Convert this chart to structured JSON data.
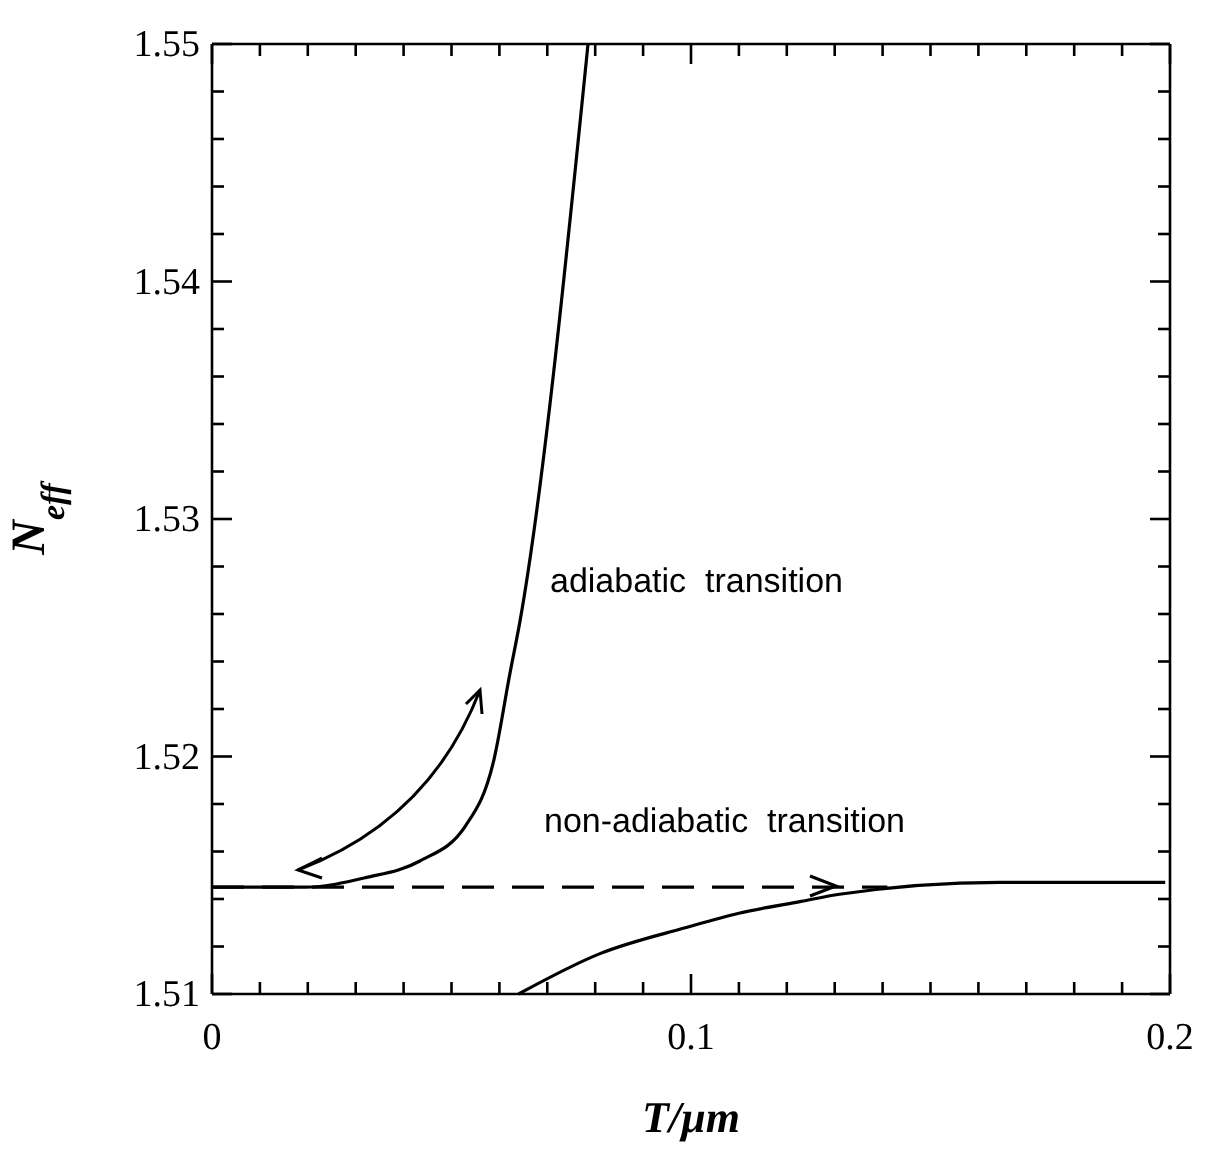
{
  "chart_data": {
    "type": "line",
    "xlabel": "T/μm",
    "ylabel": "N$_{eff}$",
    "xlim": [
      0,
      0.2
    ],
    "ylim": [
      1.51,
      1.55
    ],
    "xticks": [
      0,
      {
        "value": 0.01,
        "label": null
      },
      {
        "value": 0.02,
        "label": null
      },
      {
        "value": 0.03,
        "label": null
      },
      {
        "value": 0.04,
        "label": null
      },
      {
        "value": 0.05,
        "label": null
      },
      {
        "value": 0.06,
        "label": null
      },
      {
        "value": 0.07,
        "label": null
      },
      {
        "value": 0.08,
        "label": null
      },
      {
        "value": 0.09,
        "label": null
      },
      0.1,
      {
        "value": 0.11,
        "label": null
      },
      {
        "value": 0.12,
        "label": null
      },
      {
        "value": 0.13,
        "label": null
      },
      {
        "value": 0.14,
        "label": null
      },
      {
        "value": 0.15,
        "label": null
      },
      {
        "value": 0.16,
        "label": null
      },
      {
        "value": 0.17,
        "label": null
      },
      {
        "value": 0.18,
        "label": null
      },
      {
        "value": 0.19,
        "label": null
      },
      0.2
    ],
    "yticks": [
      1.51,
      {
        "value": 1.512,
        "label": null
      },
      {
        "value": 1.514,
        "label": null
      },
      {
        "value": 1.516,
        "label": null
      },
      {
        "value": 1.518,
        "label": null
      },
      1.52,
      {
        "value": 1.522,
        "label": null
      },
      {
        "value": 1.524,
        "label": null
      },
      {
        "value": 1.526,
        "label": null
      },
      {
        "value": 1.528,
        "label": null
      },
      1.53,
      {
        "value": 1.532,
        "label": null
      },
      {
        "value": 1.534,
        "label": null
      },
      {
        "value": 1.536,
        "label": null
      },
      {
        "value": 1.538,
        "label": null
      },
      1.54,
      {
        "value": 1.542,
        "label": null
      },
      {
        "value": 1.544,
        "label": null
      },
      {
        "value": 1.546,
        "label": null
      },
      {
        "value": 1.548,
        "label": null
      },
      1.55
    ],
    "grid": false,
    "marker": "none",
    "series": [
      {
        "color": "#000000",
        "line_style": "solid",
        "x": [
          0,
          0.0196,
          0.0321,
          0.0434,
          0.053,
          0.0589,
          0.0622,
          0.0643,
          0.0785
        ],
        "values": [
          1.5145,
          1.5145,
          1.5149,
          1.5156,
          1.5171,
          1.5199,
          1.5235,
          1.5257,
          1.55
        ]
      },
      {
        "color": "#000000",
        "line_style": "dashed",
        "x": [
          0,
          0.141
        ],
        "values": [
          1.5145,
          1.5145
        ]
      },
      {
        "color": "#000000",
        "line_style": "solid",
        "x": [
          0.064,
          0.081,
          0.099,
          0.11,
          0.123,
          0.131,
          0.1645,
          0.199
        ],
        "values": [
          1.51,
          1.5117,
          1.5128,
          1.5134,
          1.5139,
          1.5142,
          1.5147,
          1.5147
        ]
      }
    ],
    "annotations": [
      "adiabatic  transition",
      "non-adiabatic  transition"
    ]
  }
}
